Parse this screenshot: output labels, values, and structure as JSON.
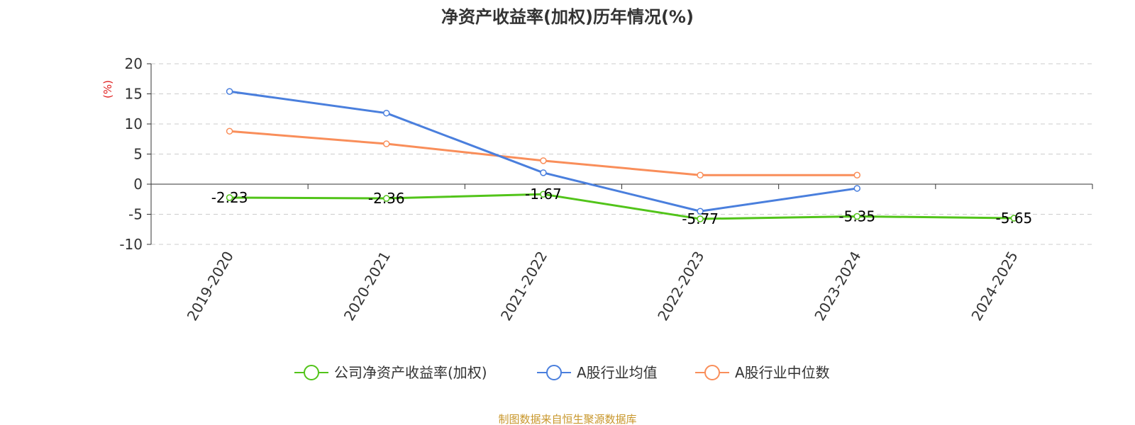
{
  "chart_data": {
    "type": "line",
    "title": "净资产收益率(加权)历年情况(%)",
    "ylabel": "(%)",
    "categories": [
      "2019-2020",
      "2020-2021",
      "2021-2022",
      "2022-2023",
      "2023-2024",
      "2024-2025"
    ],
    "ylim": [
      -10,
      20
    ],
    "yticks": [
      "20",
      "15",
      "10",
      "5",
      "0",
      "-5",
      "-10"
    ],
    "grid": true,
    "legend_position": "bottom",
    "series": [
      {
        "name": "公司净资产收益率(加权)",
        "color": "#52c41a",
        "values": [
          -2.23,
          -2.36,
          -1.67,
          -5.77,
          -5.35,
          -5.65
        ],
        "labels": [
          "-2.23",
          "-2.36",
          "-1.67",
          "-5.77",
          "-5.35",
          "-5.65"
        ]
      },
      {
        "name": "A股行业均值",
        "color": "#4a7fdd",
        "values": [
          15.4,
          11.8,
          1.9,
          -4.5,
          -0.7,
          null
        ]
      },
      {
        "name": "A股行业中位数",
        "color": "#f98e5a",
        "values": [
          8.8,
          6.7,
          3.9,
          1.5,
          1.5,
          null
        ]
      }
    ]
  },
  "source_text": "制图数据来自恒生聚源数据库",
  "colors": {
    "label_accent": "#e02020",
    "source": "#c8962a",
    "grid": "#cccccc",
    "axis": "#333333"
  }
}
